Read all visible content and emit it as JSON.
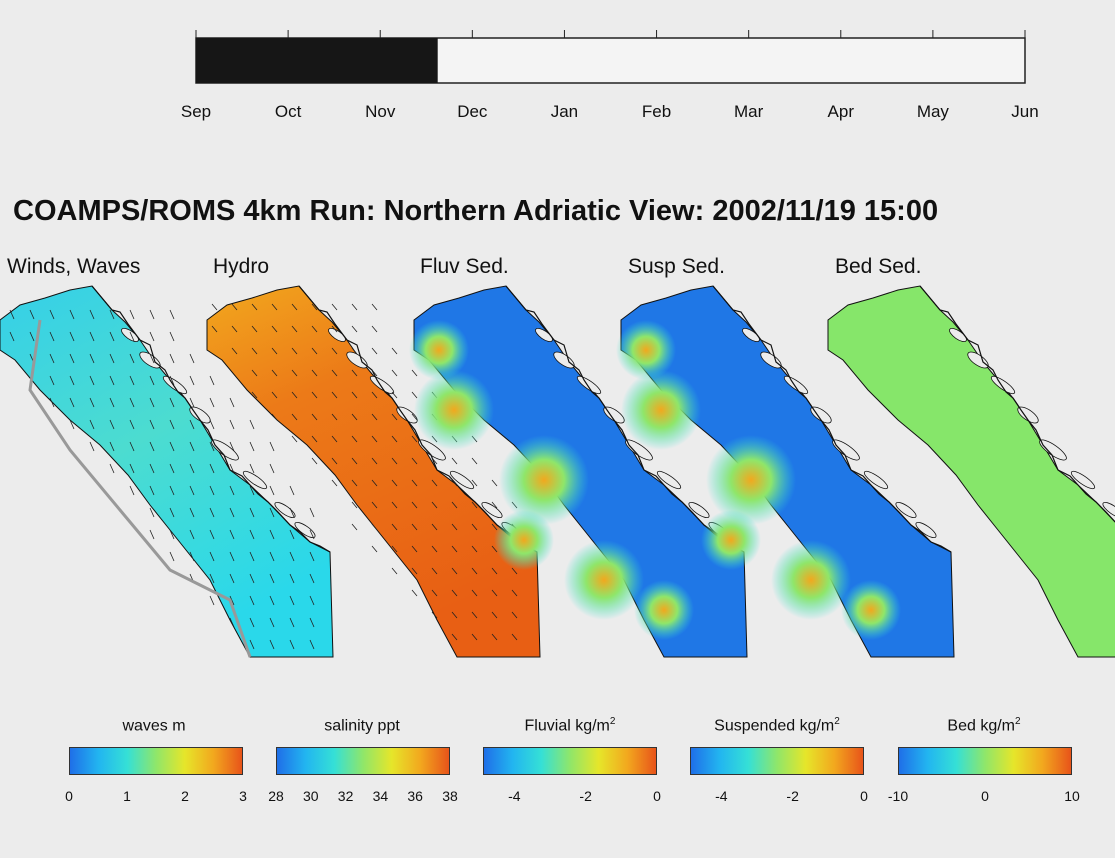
{
  "timeline": {
    "months": [
      "Sep",
      "Oct",
      "Nov",
      "Dec",
      "Jan",
      "Feb",
      "Mar",
      "Apr",
      "May",
      "Jun"
    ],
    "progress_fraction": 0.2916
  },
  "title": "COAMPS/ROMS 4km Run: Northern Adriatic View: 2002/11/19 15:00",
  "panels": [
    {
      "label": "Winds, Waves",
      "fill": "#33d6e0"
    },
    {
      "label": "Hydro",
      "fill": "#ec6a14"
    },
    {
      "label": "Fluv Sed.",
      "fill": "#1f77e6"
    },
    {
      "label": "Susp Sed.",
      "fill": "#1f77e6"
    },
    {
      "label": "Bed Sed.",
      "fill": "#86e66a"
    }
  ],
  "colorbars": [
    {
      "label": "waves m",
      "sup": "",
      "ticks": [
        "0",
        "1",
        "2",
        "3"
      ]
    },
    {
      "label": "salinity ppt",
      "sup": "",
      "ticks": [
        "28",
        "30",
        "32",
        "34",
        "36",
        "38"
      ]
    },
    {
      "label": "Fluvial kg/m",
      "sup": "2",
      "ticks": [
        "-4",
        "-2",
        "0"
      ]
    },
    {
      "label": "Suspended kg/m",
      "sup": "2",
      "ticks": [
        "-4",
        "-2",
        "0"
      ]
    },
    {
      "label": "Bed kg/m",
      "sup": "2",
      "ticks": [
        "-10",
        "0",
        "10"
      ]
    }
  ],
  "colors": {
    "timeline_fill": "#161616",
    "colormap": [
      "#1f6fe8",
      "#22b5f0",
      "#35e0d6",
      "#8fe66a",
      "#e6e62a",
      "#f2a81e",
      "#e8541a"
    ]
  }
}
